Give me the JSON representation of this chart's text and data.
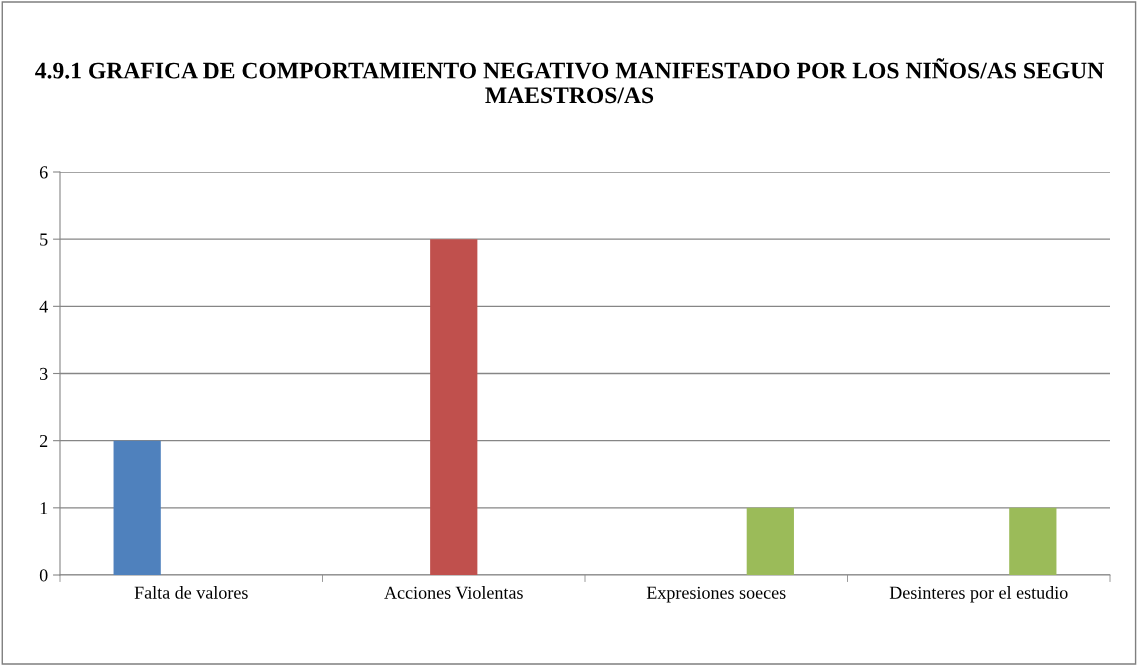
{
  "chart_data": {
    "type": "bar",
    "title": "4.9.1 GRAFICA DE COMPORTAMIENTO NEGATIVO MANIFESTADO POR LOS NIÑOS/AS SEGUN MAESTROS/AS",
    "categories": [
      "Falta de valores",
      "Acciones Violentas",
      "Expresiones soeces",
      "Desinteres por el estudio"
    ],
    "series": [
      {
        "color": "#4f81bd",
        "values": [
          2,
          null,
          null,
          null
        ]
      },
      {
        "color": "#c0504d",
        "values": [
          null,
          5,
          null,
          null
        ]
      },
      {
        "color": "#9bbb59",
        "values": [
          null,
          null,
          1,
          1
        ]
      }
    ],
    "ylim": [
      0,
      6
    ],
    "yticks": [
      0,
      1,
      2,
      3,
      4,
      5,
      6
    ],
    "grid": "y",
    "legend": false
  }
}
